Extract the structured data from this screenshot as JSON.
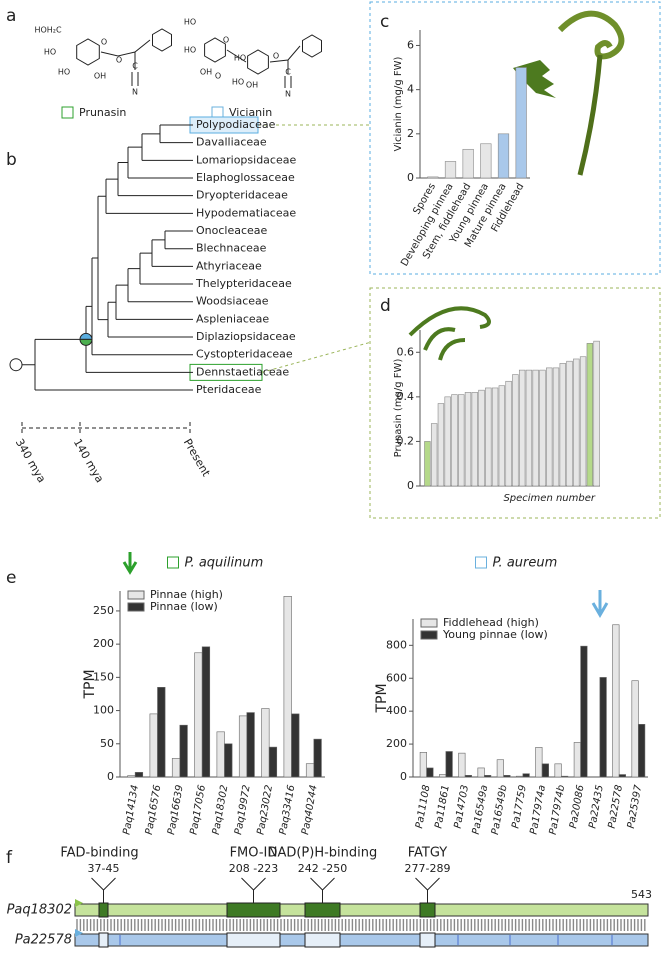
{
  "panel_labels": [
    "a",
    "b",
    "c",
    "d",
    "e",
    "f"
  ],
  "molecules": [
    {
      "name": "Prunasin",
      "atoms": [
        "HOH₂C",
        "HO",
        "HO",
        "OH",
        "O",
        "O",
        "C",
        "N"
      ]
    },
    {
      "name": "Vicianin",
      "atoms": [
        "HO",
        "HO",
        "OH",
        "O",
        "O",
        "HO",
        "HO",
        "OH",
        "O",
        "C",
        "N"
      ]
    }
  ],
  "tree": {
    "families": [
      "Polypodiaceae",
      "Davalliaceae",
      "Lomariopsidaceae",
      "Elaphoglossaceae",
      "Dryopteridaceae",
      "Hypodematiaceae",
      "Onocleaceae",
      "Blechnaceae",
      "Athyriaceae",
      "Thelypteridaceae",
      "Woodsiaceae",
      "Aspleniaceae",
      "Diplaziopsidaceae",
      "Cystopteridaceae",
      "Dennstaetiaceae",
      "Pteridaceae"
    ],
    "time_labels": [
      "340 mya",
      "140 mya",
      "Present"
    ]
  },
  "chart_data": [
    {
      "type": "bar",
      "ylabel": "Vicianin (mg/g FW)",
      "categories": [
        "Spores",
        "Developing pinnea",
        "Stem, fiddlehead",
        "Young pinnea",
        "Mature pinnea",
        "Fiddlehead"
      ],
      "values": [
        0.05,
        0.75,
        1.3,
        1.55,
        2.0,
        5.0
      ],
      "colors": [
        "#e6e6e6",
        "#e6e6e6",
        "#e6e6e6",
        "#e6e6e6",
        "#a9c8ea",
        "#a9c8ea"
      ],
      "ylim": [
        0,
        6.7
      ],
      "yticks": [
        0,
        2,
        4,
        6
      ]
    },
    {
      "type": "bar",
      "ylabel": "Prunasin (mg/g FW)",
      "xlabel": "Specimen number",
      "categories": [
        null,
        null,
        null,
        null,
        null,
        null,
        null,
        null,
        null,
        null,
        null,
        null,
        null,
        null,
        null,
        null,
        null,
        null,
        null,
        null,
        null,
        null,
        null,
        null,
        null,
        null
      ],
      "values": [
        0.2,
        0.28,
        0.37,
        0.4,
        0.41,
        0.41,
        0.42,
        0.42,
        0.43,
        0.44,
        0.44,
        0.45,
        0.47,
        0.5,
        0.52,
        0.52,
        0.52,
        0.52,
        0.53,
        0.53,
        0.55,
        0.56,
        0.57,
        0.58,
        0.64,
        0.65
      ],
      "colors": [
        "#b5d98a",
        "#e6e6e6",
        "#e6e6e6",
        "#e6e6e6",
        "#e6e6e6",
        "#e6e6e6",
        "#e6e6e6",
        "#e6e6e6",
        "#e6e6e6",
        "#e6e6e6",
        "#e6e6e6",
        "#e6e6e6",
        "#e6e6e6",
        "#e6e6e6",
        "#e6e6e6",
        "#e6e6e6",
        "#e6e6e6",
        "#e6e6e6",
        "#e6e6e6",
        "#e6e6e6",
        "#e6e6e6",
        "#e6e6e6",
        "#e6e6e6",
        "#e6e6e6",
        "#b5d98a",
        "#e6e6e6"
      ],
      "ylim": [
        0,
        0.7
      ],
      "yticks": [
        0,
        0.2,
        0.4,
        0.6
      ]
    },
    {
      "type": "bar",
      "title": "P. aquilinum",
      "title_color": "#2ca02c",
      "ylabel": "TPM",
      "legend": "upper left",
      "categories": [
        "Paq14134",
        "Paq16576",
        "Paq16639",
        "Paq17056",
        "Paq18302",
        "Paq19972",
        "Paq23022",
        "Paq33416",
        "Paq40244"
      ],
      "series": [
        {
          "name": "Pinnae (high)",
          "color": "#e6e6e6",
          "values": [
            2,
            95,
            28,
            187,
            68,
            92,
            103,
            272,
            20
          ]
        },
        {
          "name": "Pinnae (low)",
          "color": "#333333",
          "values": [
            7,
            135,
            78,
            196,
            50,
            97,
            45,
            95,
            57
          ]
        }
      ],
      "ylim": [
        0,
        280
      ],
      "yticks": [
        0,
        50,
        100,
        150,
        200,
        250
      ]
    },
    {
      "type": "bar",
      "title": "P. aureum",
      "title_color": "#6ab0de",
      "ylabel": "TPM",
      "legend": "upper left",
      "categories": [
        "Pa11108",
        "Pa11861",
        "Pa14703",
        "Pa16549a",
        "Pa16549b",
        "Pa17759",
        "Pa17974a",
        "Pa17974b",
        "Pa20086",
        "Pa22435",
        "Pa22578",
        "Pa25397"
      ],
      "series": [
        {
          "name": "Fiddlehead (high)",
          "color": "#e6e6e6",
          "values": [
            150,
            15,
            145,
            55,
            105,
            5,
            180,
            80,
            210,
            0,
            925,
            585
          ]
        },
        {
          "name": "Young pinnae (low)",
          "color": "#333333",
          "values": [
            55,
            155,
            10,
            10,
            10,
            20,
            80,
            5,
            795,
            605,
            15,
            320
          ]
        }
      ],
      "ylim": [
        0,
        960
      ],
      "yticks": [
        0,
        200,
        400,
        600,
        800
      ]
    }
  ],
  "gene_diagram": {
    "genes": [
      "Paq18302",
      "Pa22578"
    ],
    "length_label": "543",
    "domains": [
      {
        "name": "FAD-binding",
        "range": "37-45"
      },
      {
        "name": "FMO-ID",
        "range": "208 -223"
      },
      {
        "name": "NAD(P)H-binding",
        "range": "242 -250"
      },
      {
        "name": "FATGY",
        "range": "277-289"
      }
    ]
  }
}
